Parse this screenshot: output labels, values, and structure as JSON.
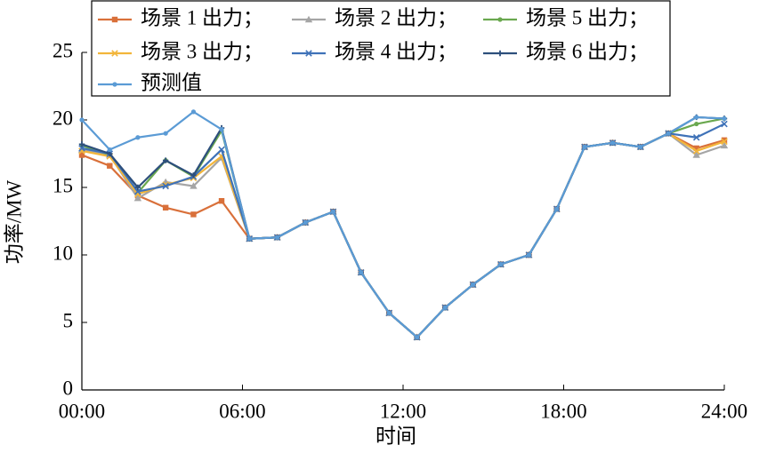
{
  "chart_data": {
    "type": "line",
    "xlabel": "时间",
    "ylabel": "功率/MW",
    "x": [
      0,
      1.04,
      2.09,
      3.13,
      4.17,
      5.22,
      6.26,
      7.3,
      8.35,
      9.39,
      10.43,
      11.48,
      12.52,
      13.57,
      14.61,
      15.65,
      16.7,
      17.74,
      18.78,
      19.83,
      20.87,
      21.91,
      22.96,
      24
    ],
    "xlim": [
      0,
      24
    ],
    "xticks": [
      {
        "value": 0,
        "label": "00:00"
      },
      {
        "value": 6,
        "label": "06:00"
      },
      {
        "value": 12,
        "label": "12:00"
      },
      {
        "value": 18,
        "label": "18:00"
      },
      {
        "value": 24,
        "label": "24:00"
      }
    ],
    "ylim": [
      0,
      25
    ],
    "yticks": [
      0,
      5,
      10,
      15,
      20,
      25
    ],
    "legend": "top",
    "series": [
      {
        "name": "场景 1 出力；",
        "color": "#d9703a",
        "marker": "square",
        "values": [
          17.4,
          16.6,
          14.4,
          13.5,
          13.0,
          14.0,
          11.2,
          11.3,
          12.4,
          13.2,
          8.7,
          5.7,
          3.9,
          6.1,
          7.8,
          9.3,
          10.0,
          13.4,
          18.0,
          18.3,
          18.0,
          19.0,
          17.9,
          18.5
        ]
      },
      {
        "name": "场景 2 出力；",
        "color": "#a5a5a5",
        "marker": "triangle",
        "values": [
          17.8,
          17.4,
          14.2,
          15.4,
          15.1,
          17.2,
          11.2,
          11.3,
          12.4,
          13.2,
          8.7,
          5.7,
          3.9,
          6.1,
          7.8,
          9.3,
          10.0,
          13.4,
          18.0,
          18.3,
          18.0,
          19.0,
          17.4,
          18.1
        ]
      },
      {
        "name": "场景 5 出力；",
        "color": "#6aa84f",
        "marker": "circle",
        "values": [
          18.1,
          17.4,
          14.6,
          17.0,
          15.8,
          19.2,
          11.2,
          11.3,
          12.4,
          13.2,
          8.7,
          5.7,
          3.9,
          6.1,
          7.8,
          9.3,
          10.0,
          13.4,
          18.0,
          18.3,
          18.0,
          19.0,
          19.7,
          20.1
        ]
      },
      {
        "name": "场景 3 出力；",
        "color": "#f2b53a",
        "marker": "x",
        "values": [
          17.7,
          17.3,
          14.5,
          15.2,
          15.7,
          17.3,
          11.2,
          11.3,
          12.4,
          13.2,
          8.7,
          5.7,
          3.9,
          6.1,
          7.8,
          9.3,
          10.0,
          13.4,
          18.0,
          18.3,
          18.0,
          19.0,
          17.7,
          18.4
        ]
      },
      {
        "name": "场景 4 出力；",
        "color": "#3f72b8",
        "marker": "x",
        "values": [
          17.9,
          17.5,
          14.7,
          15.1,
          15.8,
          17.8,
          11.2,
          11.3,
          12.4,
          13.2,
          8.7,
          5.7,
          3.9,
          6.1,
          7.8,
          9.3,
          10.0,
          13.4,
          18.0,
          18.3,
          18.0,
          19.0,
          18.7,
          19.7
        ]
      },
      {
        "name": "场景 6 出力；",
        "color": "#2d4f7c",
        "marker": "plus",
        "values": [
          18.2,
          17.5,
          15.0,
          17.0,
          15.9,
          19.4,
          11.2,
          11.3,
          12.4,
          13.2,
          8.7,
          5.7,
          3.9,
          6.1,
          7.8,
          9.3,
          10.0,
          13.4,
          18.0,
          18.3,
          18.0,
          19.0,
          20.2,
          20.1
        ]
      },
      {
        "name": "预测值",
        "color": "#5b9bd5",
        "marker": "circle",
        "values": [
          20.0,
          17.8,
          18.7,
          19.0,
          20.6,
          19.3,
          11.2,
          11.3,
          12.4,
          13.2,
          8.7,
          5.7,
          3.9,
          6.1,
          7.8,
          9.3,
          10.0,
          13.4,
          18.0,
          18.3,
          18.0,
          19.0,
          20.2,
          20.1
        ]
      }
    ]
  }
}
